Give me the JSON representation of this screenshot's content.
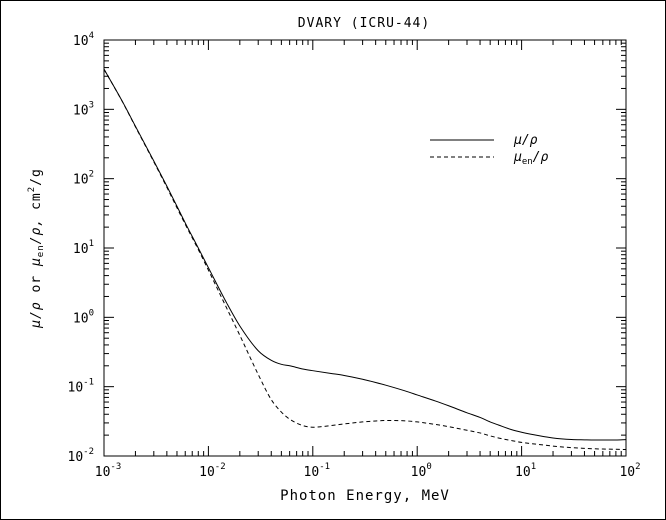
{
  "chart_data": {
    "type": "line",
    "title": "DVARY (ICRU-44)",
    "xlabel": "Photon Energy, MeV",
    "ylabel": "μ/ρ or μ_en/ρ, cm²/g",
    "ylabel_parts": {
      "mu_a": "μ",
      "rho_a": "/ρ",
      "or": " or ",
      "mu_b": "μ",
      "en": "en",
      "rho_b": "/ρ,",
      "unit_cm": "cm",
      "unit_pow": "2",
      "unit_g": "/g"
    },
    "x_scale": "log",
    "y_scale": "log",
    "xlim": [
      0.001,
      100
    ],
    "ylim": [
      0.01,
      10000
    ],
    "x_ticks": [
      {
        "value": 0.001,
        "base": "10",
        "exp": "-3"
      },
      {
        "value": 0.01,
        "base": "10",
        "exp": "-2"
      },
      {
        "value": 0.1,
        "base": "10",
        "exp": "-1"
      },
      {
        "value": 1,
        "base": "10",
        "exp": "0"
      },
      {
        "value": 10,
        "base": "10",
        "exp": "1"
      },
      {
        "value": 100,
        "base": "10",
        "exp": "2"
      }
    ],
    "y_ticks": [
      {
        "value": 0.01,
        "base": "10",
        "exp": "-2"
      },
      {
        "value": 0.1,
        "base": "10",
        "exp": "-1"
      },
      {
        "value": 1,
        "base": "10",
        "exp": "0"
      },
      {
        "value": 10,
        "base": "10",
        "exp": "1"
      },
      {
        "value": 100,
        "base": "10",
        "exp": "2"
      },
      {
        "value": 1000,
        "base": "10",
        "exp": "3"
      },
      {
        "value": 10000,
        "base": "10",
        "exp": "4"
      }
    ],
    "grid": false,
    "legend_position": "top-right",
    "series": [
      {
        "name": "μ/ρ",
        "legend": {
          "main": "μ/ρ",
          "sub": ""
        },
        "style": "solid",
        "x": [
          0.001,
          0.0015,
          0.002,
          0.003,
          0.004,
          0.005,
          0.006,
          0.008,
          0.01,
          0.015,
          0.02,
          0.03,
          0.04,
          0.05,
          0.06,
          0.08,
          0.1,
          0.15,
          0.2,
          0.3,
          0.4,
          0.5,
          0.6,
          0.8,
          1,
          1.5,
          2,
          3,
          4,
          5,
          6,
          8,
          10,
          15,
          20,
          30,
          40,
          50,
          60,
          80,
          100
        ],
        "y": [
          3800,
          1300,
          570,
          180,
          78,
          40,
          23,
          10,
          5.2,
          1.6,
          0.75,
          0.33,
          0.24,
          0.21,
          0.2,
          0.18,
          0.17,
          0.155,
          0.145,
          0.128,
          0.115,
          0.105,
          0.097,
          0.085,
          0.076,
          0.062,
          0.053,
          0.042,
          0.036,
          0.031,
          0.028,
          0.024,
          0.022,
          0.0195,
          0.0182,
          0.0173,
          0.0171,
          0.017,
          0.017,
          0.017,
          0.0172
        ]
      },
      {
        "name": "μ_en/ρ",
        "legend": {
          "main": "μ",
          "sub": "en",
          "tail": "/ρ"
        },
        "style": "dashed",
        "x": [
          0.001,
          0.0015,
          0.002,
          0.003,
          0.004,
          0.005,
          0.006,
          0.008,
          0.01,
          0.015,
          0.02,
          0.03,
          0.04,
          0.05,
          0.06,
          0.08,
          0.1,
          0.15,
          0.2,
          0.3,
          0.4,
          0.5,
          0.6,
          0.8,
          1,
          1.5,
          2,
          3,
          4,
          5,
          6,
          8,
          10,
          15,
          20,
          30,
          40,
          50,
          60,
          80,
          100
        ],
        "y": [
          3780,
          1290,
          560,
          175,
          75,
          38,
          22,
          9.5,
          4.8,
          1.35,
          0.55,
          0.15,
          0.065,
          0.043,
          0.034,
          0.0275,
          0.026,
          0.0275,
          0.029,
          0.031,
          0.032,
          0.0325,
          0.0325,
          0.032,
          0.031,
          0.0285,
          0.0265,
          0.0235,
          0.0215,
          0.0195,
          0.0182,
          0.0167,
          0.0157,
          0.0146,
          0.0139,
          0.0132,
          0.0129,
          0.0127,
          0.0126,
          0.0125,
          0.0124
        ]
      }
    ]
  }
}
